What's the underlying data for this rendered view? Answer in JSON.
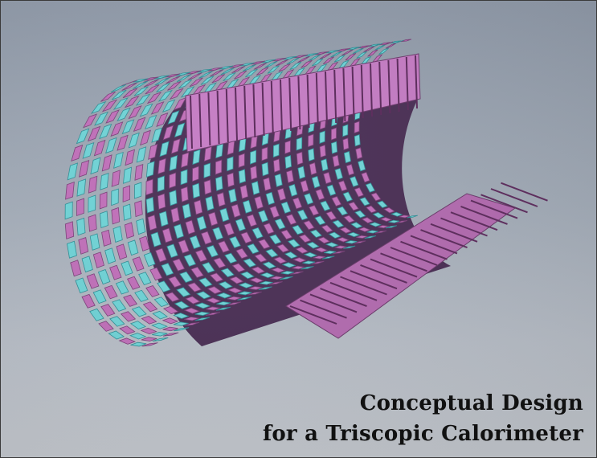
{
  "caption": {
    "line1": "Conceptual Design",
    "line2": "for a Triscopic Calorimeter"
  },
  "colors": {
    "background_top": "#8f99a8",
    "background_bottom": "#c3c7cd",
    "magenta_tile": "#c06fb9",
    "magenta_dark": "#7a3f78",
    "cyan_tile": "#6fd3d6",
    "cyan_dark": "#2f8e95"
  }
}
